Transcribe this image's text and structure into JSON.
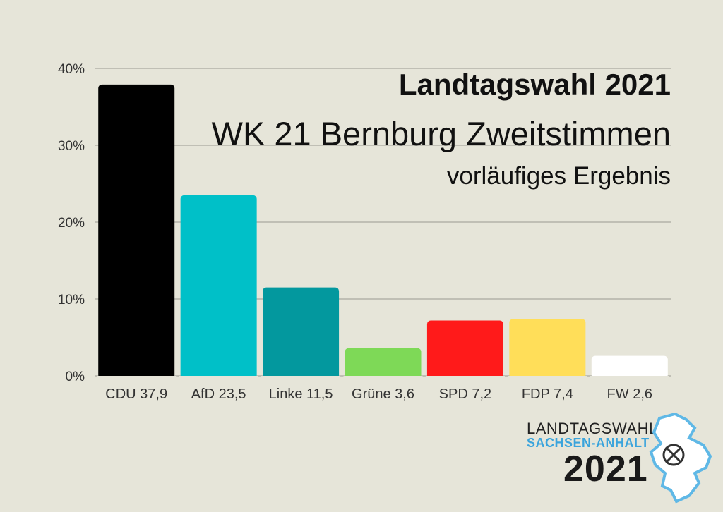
{
  "title": "Landtagswahl 2021",
  "subtitle": "WK 21 Bernburg Zweitstimmen",
  "subtitle2": "vorläufiges Ergebnis",
  "logo": {
    "line1": "LANDTAGSWAHL",
    "line2": "SACHSEN-ANHALT",
    "year": "2021"
  },
  "chart_data": {
    "type": "bar",
    "categories": [
      "CDU 37,9",
      "AfD 23,5",
      "Linke 11,5",
      "Grüne 3,6",
      "SPD 7,2",
      "FDP 7,4",
      "FW 2,6"
    ],
    "values": [
      37.9,
      23.5,
      11.5,
      3.6,
      7.2,
      7.4,
      2.6
    ],
    "colors": [
      "#000000",
      "#00c0c8",
      "#03989e",
      "#7ed957",
      "#ff1a1a",
      "#ffde59",
      "#ffffff"
    ],
    "ylim": [
      0,
      40
    ],
    "yticks": [
      "0%",
      "10%",
      "20%",
      "30%",
      "40%"
    ],
    "grid": true
  }
}
